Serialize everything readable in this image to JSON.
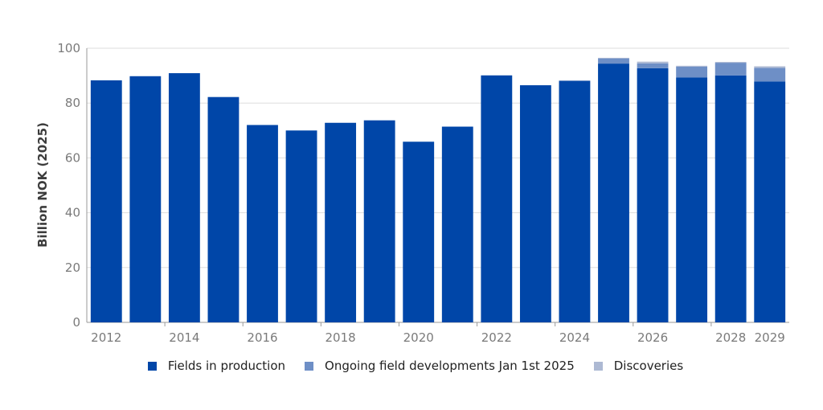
{
  "chart_data": {
    "type": "bar",
    "stacked": true,
    "ylabel": "Billion NOK (2025)",
    "xlabel": "",
    "ylim": [
      0,
      100
    ],
    "yticks": [
      0,
      20,
      40,
      60,
      80,
      100
    ],
    "grid": true,
    "legend_position": "bottom",
    "categories": [
      "2012",
      "2013",
      "2014",
      "2015",
      "2016",
      "2017",
      "2018",
      "2019",
      "2020",
      "2021",
      "2022",
      "2023",
      "2024",
      "2025",
      "2026",
      "2027",
      "2028",
      "2029"
    ],
    "xtick_labels": [
      "2012",
      "2014",
      "2016",
      "2018",
      "2020",
      "2022",
      "2024",
      "2026",
      "2028",
      "2029"
    ],
    "series": [
      {
        "name": "Fields in production",
        "color": "#0046a8",
        "values": [
          88.3,
          89.8,
          90.9,
          82.2,
          72.0,
          70.0,
          72.8,
          73.7,
          65.9,
          71.4,
          90.1,
          86.5,
          88.0,
          94.4,
          92.7,
          89.3,
          90.1,
          87.9
        ]
      },
      {
        "name": "Ongoing field developments Jan 1st 2025",
        "color": "#6e8fc6",
        "values": [
          0,
          0,
          0,
          0,
          0,
          0,
          0,
          0,
          0,
          0,
          0,
          0,
          0.3,
          1.9,
          1.8,
          4.0,
          4.6,
          4.9
        ]
      },
      {
        "name": "Discoveries",
        "color": "#adb9d3",
        "values": [
          0,
          0,
          0,
          0,
          0,
          0,
          0,
          0,
          0,
          0,
          0,
          0,
          0,
          0.2,
          0.6,
          0.3,
          0.3,
          0.6
        ]
      }
    ]
  }
}
